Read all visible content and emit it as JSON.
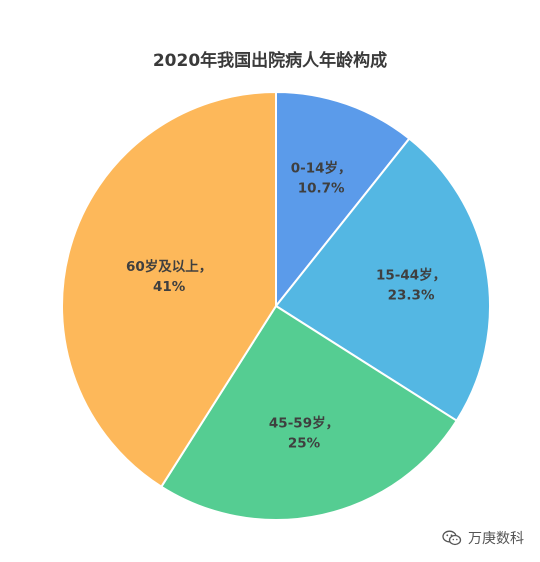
{
  "chart_data": {
    "type": "pie",
    "title": "2020年我国出院病人年龄构成",
    "slices": [
      {
        "name": "0-14岁",
        "value": 10.7,
        "label": "10.7%",
        "color": "#5b9bea"
      },
      {
        "name": "15-44岁",
        "value": 23.3,
        "label": "23.3%",
        "color": "#54b7e3"
      },
      {
        "name": "45-59岁",
        "value": 25,
        "label": "25%",
        "color": "#55cd92"
      },
      {
        "name": "60岁及以上",
        "value": 41,
        "label": "41%",
        "color": "#fdb85a"
      }
    ],
    "start_angle_deg": 0,
    "direction": "clockwise",
    "slice_border_color": "#ffffff"
  },
  "watermark": {
    "icon": "wechat-icon",
    "text": "万庚数科"
  }
}
